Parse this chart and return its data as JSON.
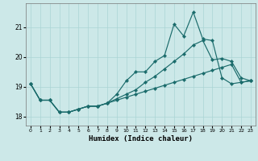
{
  "xlabel": "Humidex (Indice chaleur)",
  "xlim": [
    -0.5,
    23.5
  ],
  "ylim": [
    17.7,
    21.8
  ],
  "yticks": [
    18,
    19,
    20,
    21
  ],
  "xticks": [
    0,
    1,
    2,
    3,
    4,
    5,
    6,
    7,
    8,
    9,
    10,
    11,
    12,
    13,
    14,
    15,
    16,
    17,
    18,
    19,
    20,
    21,
    22,
    23
  ],
  "background_color": "#cce8e8",
  "grid_color": "#aad4d4",
  "line_color": "#1a6b6b",
  "line1_x": [
    0,
    1,
    2,
    3,
    4,
    5,
    6,
    7,
    8,
    9,
    10,
    11,
    12,
    13,
    14,
    15,
    16,
    17,
    18,
    19,
    20,
    21,
    22,
    23
  ],
  "line1_y": [
    19.1,
    18.55,
    18.55,
    18.15,
    18.15,
    18.25,
    18.35,
    18.35,
    18.45,
    18.75,
    19.2,
    19.5,
    19.5,
    19.85,
    20.05,
    21.1,
    20.7,
    21.5,
    20.6,
    20.55,
    19.3,
    19.1,
    19.15,
    19.2
  ],
  "line2_x": [
    0,
    1,
    2,
    3,
    4,
    5,
    6,
    7,
    8,
    9,
    10,
    11,
    12,
    13,
    14,
    15,
    16,
    17,
    18,
    19,
    20,
    21,
    22,
    23
  ],
  "line2_y": [
    19.1,
    18.55,
    18.55,
    18.15,
    18.15,
    18.25,
    18.35,
    18.35,
    18.45,
    18.6,
    18.75,
    18.9,
    19.15,
    19.35,
    19.6,
    19.85,
    20.1,
    20.4,
    20.55,
    19.9,
    19.95,
    19.85,
    19.3,
    19.2
  ],
  "line3_x": [
    0,
    1,
    2,
    3,
    4,
    5,
    6,
    7,
    8,
    9,
    10,
    11,
    12,
    13,
    14,
    15,
    16,
    17,
    18,
    19,
    20,
    21,
    22,
    23
  ],
  "line3_y": [
    19.1,
    18.55,
    18.55,
    18.15,
    18.15,
    18.25,
    18.35,
    18.35,
    18.45,
    18.55,
    18.65,
    18.75,
    18.85,
    18.95,
    19.05,
    19.15,
    19.25,
    19.35,
    19.45,
    19.55,
    19.65,
    19.75,
    19.15,
    19.2
  ]
}
